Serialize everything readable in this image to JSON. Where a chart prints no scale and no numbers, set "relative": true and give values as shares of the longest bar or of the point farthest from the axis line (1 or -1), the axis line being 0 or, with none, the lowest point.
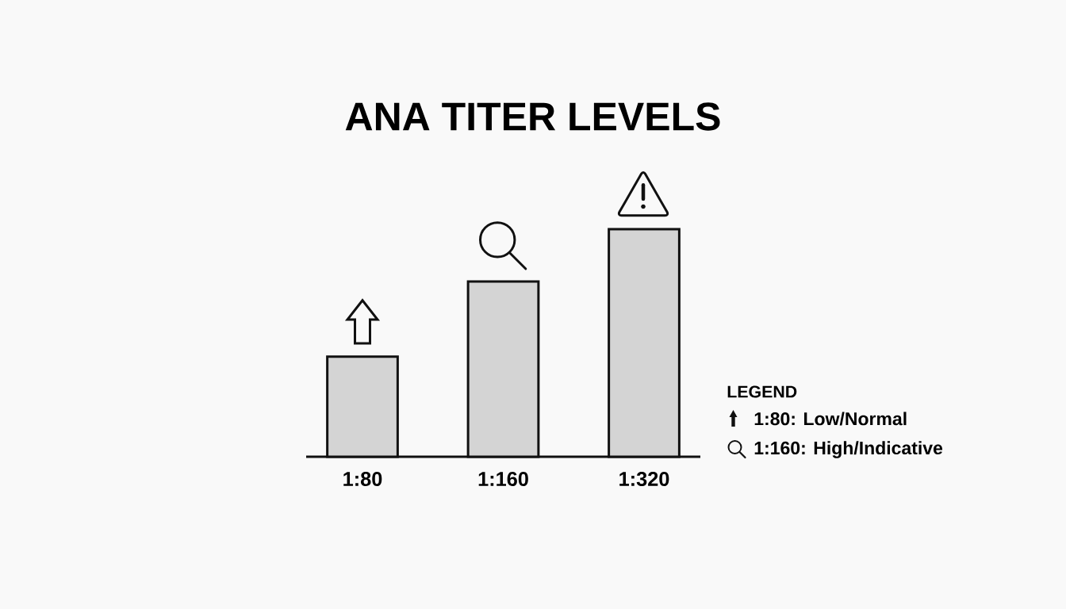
{
  "chart_data": {
    "type": "bar",
    "title": "ANA TITER LEVELS",
    "categories": [
      "1:80",
      "1:160",
      "1:320"
    ],
    "values": [
      0.44,
      0.77,
      1
    ],
    "relative": true,
    "color": "#d4d4d4",
    "legend_title": "LEGEND",
    "annotations": [
      "1:80: Low/Normal",
      "1:160: High/Indicative"
    ]
  }
}
